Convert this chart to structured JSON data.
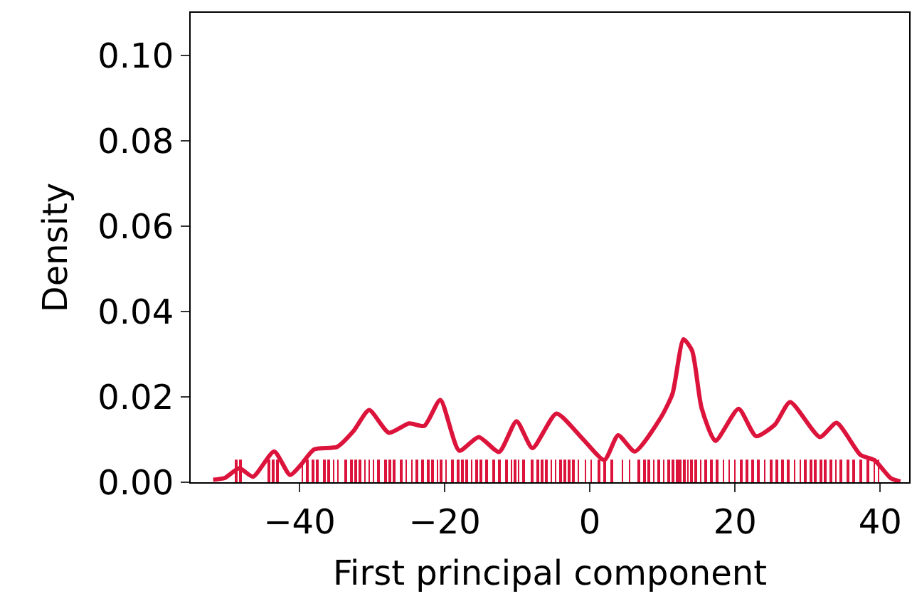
{
  "chart_data": {
    "type": "line",
    "xlabel": "First principal component",
    "ylabel": "Density",
    "xlim": [
      -55,
      44
    ],
    "ylim": [
      0,
      0.11
    ],
    "xticks": [
      {
        "value": -40,
        "label": "−40"
      },
      {
        "value": -20,
        "label": "−20"
      },
      0,
      20,
      40
    ],
    "yticks": [
      {
        "value": 0,
        "label": "0.00"
      },
      {
        "value": 0.02,
        "label": "0.02"
      },
      {
        "value": 0.04,
        "label": "0.04"
      },
      {
        "value": 0.06,
        "label": "0.06"
      },
      {
        "value": 0.08,
        "label": "0.08"
      },
      {
        "value": 0.1,
        "label": "0.10"
      }
    ],
    "series": [
      {
        "color": "#dc143c",
        "x": [
          -51.9,
          -50.3,
          -48.3,
          -46.4,
          -43.5,
          -41.3,
          -39.8,
          -38.0,
          -34.8,
          -32.6,
          -30.4,
          -27.7,
          -24.9,
          -22.8,
          -20.6,
          -18.0,
          -15.3,
          -12.5,
          -10.1,
          -7.9,
          -4.6,
          -1.0,
          2.0,
          3.9,
          6.2,
          9.8,
          11.4,
          12.9,
          14.1,
          15.4,
          17.3,
          20.5,
          22.9,
          25.5,
          27.6,
          31.7,
          34.0,
          37.3,
          39.2,
          41.5,
          42.8
        ],
        "values": [
          0.0006,
          0.001,
          0.0033,
          0.0013,
          0.0072,
          0.0017,
          0.0041,
          0.0077,
          0.0083,
          0.0119,
          0.0169,
          0.0116,
          0.0138,
          0.0132,
          0.0193,
          0.0074,
          0.0106,
          0.0071,
          0.0143,
          0.008,
          0.0161,
          0.0102,
          0.0052,
          0.011,
          0.0072,
          0.0152,
          0.0208,
          0.0335,
          0.0308,
          0.0174,
          0.0097,
          0.0172,
          0.0108,
          0.0135,
          0.0188,
          0.0106,
          0.0139,
          0.0064,
          0.0052,
          0.0009,
          0.0002
        ]
      },
      {
        "type": "bar",
        "color": "#dc143c",
        "x": [
          -48.8,
          -48.2,
          -44.2,
          -43.6,
          -43.0,
          -39.6,
          -38.9,
          -38.2,
          -37.5,
          -36.6,
          -36.0,
          -35.3,
          -34.7,
          -33.6,
          -32.9,
          -32.3,
          -31.6,
          -31.0,
          -30.4,
          -29.8,
          -29.1,
          -28.2,
          -27.5,
          -26.9,
          -26.0,
          -25.3,
          -24.5,
          -23.8,
          -23.1,
          -22.3,
          -21.6,
          -21.0,
          -20.5,
          -19.8,
          -18.9,
          -18.2,
          -17.6,
          -16.9,
          -16.3,
          -15.6,
          -15.0,
          -14.2,
          -13.2,
          -12.4,
          -11.5,
          -10.8,
          -10.3,
          -9.8,
          -9.2,
          -8.0,
          -7.2,
          -6.6,
          -6.0,
          -5.3,
          -4.7,
          -4.1,
          -3.5,
          -2.8,
          -2.2,
          -1.6,
          -0.6,
          0.2,
          1.2,
          2.0,
          3.0,
          4.5,
          5.5,
          6.8,
          7.5,
          8.1,
          8.8,
          9.5,
          10.2,
          10.9,
          11.5,
          12.0,
          12.5,
          13.0,
          13.5,
          14.0,
          14.6,
          15.3,
          16.0,
          16.8,
          17.6,
          18.4,
          19.2,
          20.0,
          20.8,
          21.6,
          22.4,
          23.2,
          24.1,
          25.0,
          25.8,
          26.6,
          27.4,
          28.2,
          29.0,
          29.7,
          30.4,
          31.1,
          31.8,
          32.5,
          33.2,
          33.9,
          34.6,
          35.5,
          36.3,
          37.4,
          38.3,
          39.2,
          39.8
        ],
        "values": [
          0.0053,
          0.0053,
          0.0053,
          0.0053,
          0.0053,
          0.0053,
          0.0053,
          0.0053,
          0.0053,
          0.0053,
          0.0053,
          0.0053,
          0.0053,
          0.0053,
          0.0053,
          0.0053,
          0.0053,
          0.0053,
          0.0053,
          0.0053,
          0.0053,
          0.0053,
          0.0053,
          0.0053,
          0.0053,
          0.0053,
          0.0053,
          0.0053,
          0.0053,
          0.0053,
          0.0053,
          0.0053,
          0.0053,
          0.0053,
          0.0053,
          0.0053,
          0.0053,
          0.0053,
          0.0053,
          0.0053,
          0.0053,
          0.0053,
          0.0053,
          0.0053,
          0.0053,
          0.0053,
          0.0053,
          0.0053,
          0.0053,
          0.0053,
          0.0053,
          0.0053,
          0.0053,
          0.0053,
          0.0053,
          0.0053,
          0.0053,
          0.0053,
          0.0053,
          0.0053,
          0.0053,
          0.0053,
          0.0053,
          0.0053,
          0.0053,
          0.0053,
          0.0053,
          0.0053,
          0.0053,
          0.0053,
          0.0053,
          0.0053,
          0.0053,
          0.0053,
          0.0053,
          0.0053,
          0.0053,
          0.0053,
          0.0053,
          0.0053,
          0.0053,
          0.0053,
          0.0053,
          0.0053,
          0.0053,
          0.0053,
          0.0053,
          0.0053,
          0.0053,
          0.0053,
          0.0053,
          0.0053,
          0.0053,
          0.0053,
          0.0053,
          0.0053,
          0.0053,
          0.0053,
          0.0053,
          0.0053,
          0.0053,
          0.0053,
          0.0053,
          0.0053,
          0.0053,
          0.0053,
          0.0053,
          0.0053,
          0.0053,
          0.0053,
          0.0053,
          0.0053,
          0.0053
        ]
      }
    ]
  }
}
